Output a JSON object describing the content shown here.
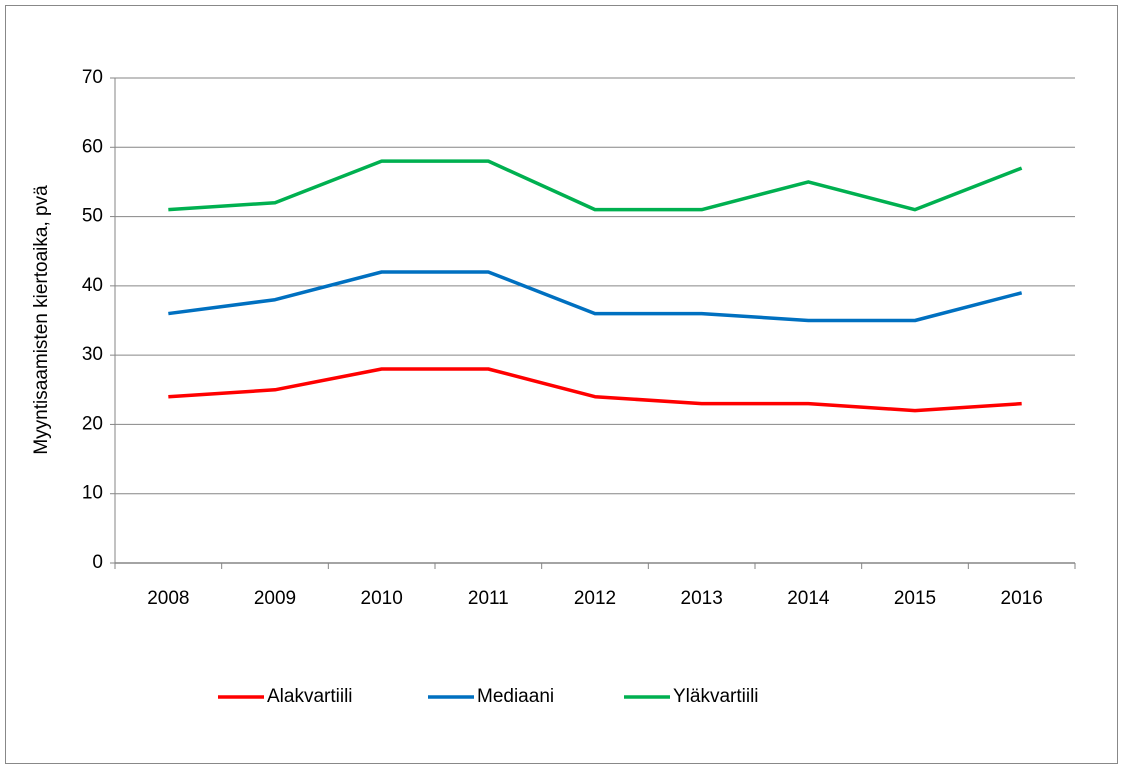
{
  "chart_data": {
    "type": "line",
    "ylabel": "Myyntisaamisten kiertoaika, pvä",
    "categories": [
      "2008",
      "2009",
      "2010",
      "2011",
      "2012",
      "2013",
      "2014",
      "2015",
      "2016"
    ],
    "series": [
      {
        "name": "Alakvartiili",
        "color": "#ff0000",
        "values": [
          24,
          25,
          28,
          28,
          24,
          23,
          23,
          22,
          23
        ]
      },
      {
        "name": "Mediaani",
        "color": "#0070c0",
        "values": [
          36,
          38,
          42,
          42,
          36,
          36,
          35,
          35,
          39
        ]
      },
      {
        "name": "Yläkvartiili",
        "color": "#00b050",
        "values": [
          51,
          52,
          58,
          58,
          51,
          51,
          55,
          51,
          57
        ]
      }
    ],
    "ylim": [
      0,
      70
    ],
    "yticks": [
      0,
      10,
      20,
      30,
      40,
      50,
      60,
      70
    ],
    "grid": true,
    "legend": "bottom"
  }
}
